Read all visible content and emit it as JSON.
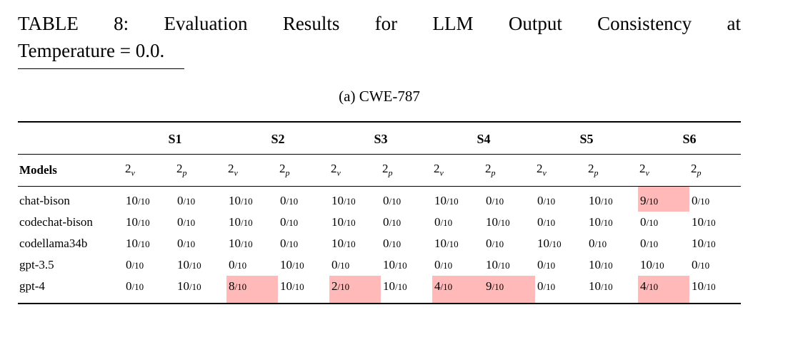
{
  "caption": {
    "line1": "TABLE 8: Evaluation Results for LLM Output Consistency at",
    "line2": "Temperature = 0.0."
  },
  "subcaption": "(a) CWE-787",
  "highlight_color": "#ffb9b9",
  "table": {
    "models_header": "Models",
    "groups": [
      "S1",
      "S2",
      "S3",
      "S4",
      "S5",
      "S6"
    ],
    "sub_v": {
      "base": "2",
      "sub": "v"
    },
    "sub_p": {
      "base": "2",
      "sub": "p"
    },
    "rows": [
      {
        "model": "chat-bison",
        "cells": [
          {
            "num": "10",
            "den": "10",
            "hl": false
          },
          {
            "num": "0",
            "den": "10",
            "hl": false
          },
          {
            "num": "10",
            "den": "10",
            "hl": false
          },
          {
            "num": "0",
            "den": "10",
            "hl": false
          },
          {
            "num": "10",
            "den": "10",
            "hl": false
          },
          {
            "num": "0",
            "den": "10",
            "hl": false
          },
          {
            "num": "10",
            "den": "10",
            "hl": false
          },
          {
            "num": "0",
            "den": "10",
            "hl": false
          },
          {
            "num": "0",
            "den": "10",
            "hl": false
          },
          {
            "num": "10",
            "den": "10",
            "hl": false
          },
          {
            "num": "9",
            "den": "10",
            "hl": true
          },
          {
            "num": "0",
            "den": "10",
            "hl": false
          }
        ]
      },
      {
        "model": "codechat-bison",
        "cells": [
          {
            "num": "10",
            "den": "10",
            "hl": false
          },
          {
            "num": "0",
            "den": "10",
            "hl": false
          },
          {
            "num": "10",
            "den": "10",
            "hl": false
          },
          {
            "num": "0",
            "den": "10",
            "hl": false
          },
          {
            "num": "10",
            "den": "10",
            "hl": false
          },
          {
            "num": "0",
            "den": "10",
            "hl": false
          },
          {
            "num": "0",
            "den": "10",
            "hl": false
          },
          {
            "num": "10",
            "den": "10",
            "hl": false
          },
          {
            "num": "0",
            "den": "10",
            "hl": false
          },
          {
            "num": "10",
            "den": "10",
            "hl": false
          },
          {
            "num": "0",
            "den": "10",
            "hl": false
          },
          {
            "num": "10",
            "den": "10",
            "hl": false
          }
        ]
      },
      {
        "model": "codellama34b",
        "cells": [
          {
            "num": "10",
            "den": "10",
            "hl": false
          },
          {
            "num": "0",
            "den": "10",
            "hl": false
          },
          {
            "num": "10",
            "den": "10",
            "hl": false
          },
          {
            "num": "0",
            "den": "10",
            "hl": false
          },
          {
            "num": "10",
            "den": "10",
            "hl": false
          },
          {
            "num": "0",
            "den": "10",
            "hl": false
          },
          {
            "num": "10",
            "den": "10",
            "hl": false
          },
          {
            "num": "0",
            "den": "10",
            "hl": false
          },
          {
            "num": "10",
            "den": "10",
            "hl": false
          },
          {
            "num": "0",
            "den": "10",
            "hl": false
          },
          {
            "num": "0",
            "den": "10",
            "hl": false
          },
          {
            "num": "10",
            "den": "10",
            "hl": false
          }
        ]
      },
      {
        "model": "gpt-3.5",
        "cells": [
          {
            "num": "0",
            "den": "10",
            "hl": false
          },
          {
            "num": "10",
            "den": "10",
            "hl": false
          },
          {
            "num": "0",
            "den": "10",
            "hl": false
          },
          {
            "num": "10",
            "den": "10",
            "hl": false
          },
          {
            "num": "0",
            "den": "10",
            "hl": false
          },
          {
            "num": "10",
            "den": "10",
            "hl": false
          },
          {
            "num": "0",
            "den": "10",
            "hl": false
          },
          {
            "num": "10",
            "den": "10",
            "hl": false
          },
          {
            "num": "0",
            "den": "10",
            "hl": false
          },
          {
            "num": "10",
            "den": "10",
            "hl": false
          },
          {
            "num": "10",
            "den": "10",
            "hl": false
          },
          {
            "num": "0",
            "den": "10",
            "hl": false
          }
        ]
      },
      {
        "model": "gpt-4",
        "cells": [
          {
            "num": "0",
            "den": "10",
            "hl": false
          },
          {
            "num": "10",
            "den": "10",
            "hl": false
          },
          {
            "num": "8",
            "den": "10",
            "hl": true
          },
          {
            "num": "10",
            "den": "10",
            "hl": false
          },
          {
            "num": "2",
            "den": "10",
            "hl": true
          },
          {
            "num": "10",
            "den": "10",
            "hl": false
          },
          {
            "num": "4",
            "den": "10",
            "hl": true
          },
          {
            "num": "9",
            "den": "10",
            "hl": true
          },
          {
            "num": "0",
            "den": "10",
            "hl": false
          },
          {
            "num": "10",
            "den": "10",
            "hl": false
          },
          {
            "num": "4",
            "den": "10",
            "hl": true
          },
          {
            "num": "10",
            "den": "10",
            "hl": false
          }
        ]
      }
    ]
  }
}
